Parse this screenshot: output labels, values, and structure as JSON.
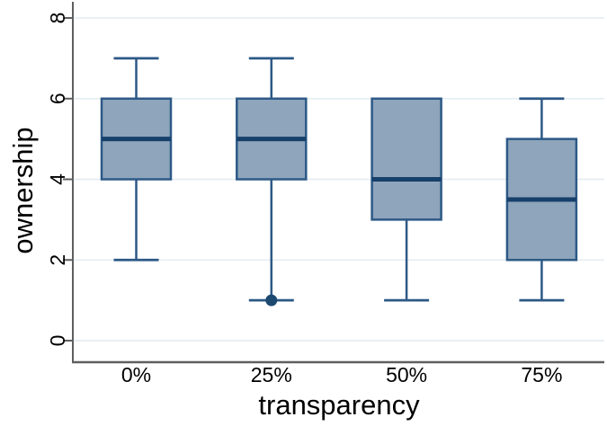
{
  "chart_data": {
    "type": "boxplot",
    "title": "",
    "xlabel": "transparency",
    "ylabel": "ownership",
    "categories": [
      "0%",
      "25%",
      "50%",
      "75%"
    ],
    "yticks": [
      0,
      2,
      4,
      6,
      8
    ],
    "ylim": [
      0,
      8
    ],
    "grid": true,
    "legend": "none",
    "series": [
      {
        "category": "0%",
        "whisker_low": 2,
        "q1": 4,
        "median": 5,
        "q3": 6,
        "whisker_high": 7,
        "outliers": []
      },
      {
        "category": "25%",
        "whisker_low": 1,
        "q1": 4,
        "median": 5,
        "q3": 6,
        "whisker_high": 7,
        "outliers": [
          1
        ]
      },
      {
        "category": "50%",
        "whisker_low": 1,
        "q1": 3,
        "median": 4,
        "q3": 6,
        "whisker_high": 6,
        "outliers": []
      },
      {
        "category": "75%",
        "whisker_low": 1,
        "q1": 2,
        "median": 3.5,
        "q3": 5,
        "whisker_high": 6,
        "outliers": []
      }
    ],
    "colors": {
      "box_fill": "#8ea5bc",
      "box_border": "#2d5986",
      "median": "#17406b",
      "whisker": "#2d5986",
      "outlier": "#1d4971",
      "gridline": "#e3ecf1",
      "axis": "#5f5f5f",
      "text": "#000000",
      "background": "#ffffff"
    }
  }
}
